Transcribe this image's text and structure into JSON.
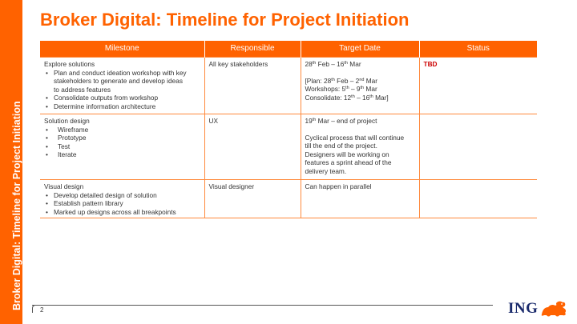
{
  "sidebar": {
    "title": "Broker Digital: Timeline for Project Initiation"
  },
  "page": {
    "title": "Broker Digital: Timeline for Project Initiation",
    "number": "2"
  },
  "table": {
    "headers": {
      "milestone": "Milestone",
      "responsible": "Responsible",
      "target_date": "Target Date",
      "status": "Status"
    },
    "rows": [
      {
        "milestone_title": "Explore solutions",
        "bullets": [
          "Plan and conduct ideation workshop with key",
          "stakeholders to generate and develop ideas",
          "to address features",
          "Consolidate outputs from workshop",
          "Determine information architecture"
        ],
        "responsible": "All key stakeholders",
        "date": {
          "d1": "28",
          "s1": "th",
          "t1": " Feb – 16",
          "s2": "th",
          "t2": " Mar",
          "plan_a": "[Plan: 28",
          "plan_s1": "th",
          "plan_b": " Feb – 2",
          "plan_s2": "nd",
          "plan_c": " Mar",
          "ws_a": "Workshops: 5",
          "ws_s1": "th",
          "ws_b": " – 9",
          "ws_s2": "th",
          "ws_c": " Mar",
          "co_a": "Consolidate: 12",
          "co_s1": "th",
          "co_b": " – 16",
          "co_s2": "th",
          "co_c": " Mar]"
        },
        "status": "TBD"
      },
      {
        "milestone_title": "Solution design",
        "bullets": [
          "Wireframe",
          "Prototype",
          "Test",
          "Iterate"
        ],
        "responsible": "UX",
        "date": {
          "d1": "19",
          "s1": "th",
          "t1": " Mar – end of project",
          "notes": [
            "Cyclical process that will continue",
            "till the end of the project.",
            "Designers will be working on",
            "features a sprint ahead of the",
            "delivery team."
          ]
        },
        "status": ""
      },
      {
        "milestone_title": "Visual design",
        "bullets": [
          "Develop detailed design of solution",
          "Establish pattern library",
          "Marked up designs across all breakpoints"
        ],
        "responsible": "Visual designer",
        "date": {
          "line": "Can happen in parallel"
        },
        "status": ""
      }
    ]
  },
  "logo": {
    "text": "ING",
    "icon": "lion-icon"
  },
  "colors": {
    "accent": "#ff6200",
    "status_tbd": "#cc0000",
    "logo_navy": "#1a2a6c"
  }
}
